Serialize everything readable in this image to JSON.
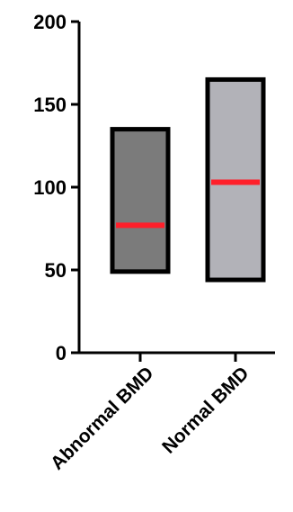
{
  "chart_data": {
    "type": "bar",
    "subtype": "floating-bar-with-median-line",
    "title": "",
    "xlabel": "",
    "ylabel": "",
    "ylim": [
      0,
      200
    ],
    "yticks": [
      0,
      50,
      100,
      150,
      200
    ],
    "ytick_labels": [
      "0",
      "50",
      "100",
      "150",
      "200"
    ],
    "grid": false,
    "legend": "none",
    "categories": [
      "Abnormal BMD",
      "Normal BMD"
    ],
    "series": [
      {
        "min": [
          49,
          44
        ],
        "max": [
          135,
          165
        ],
        "median": [
          77,
          103
        ]
      }
    ],
    "colors": {
      "bar_fills": [
        "#7b7b7b",
        "#b2b2b8"
      ],
      "bar_outline": "#000000",
      "median_line": "#ff1f2a",
      "axis": "#000000"
    }
  }
}
